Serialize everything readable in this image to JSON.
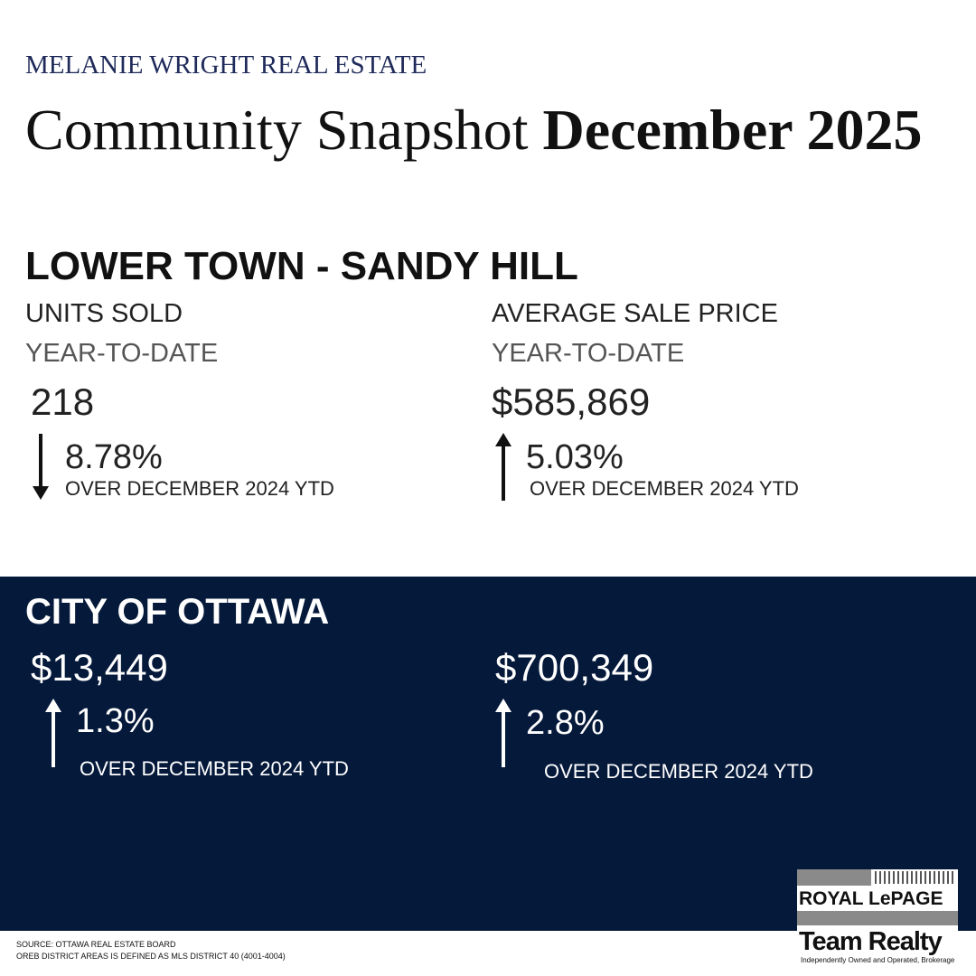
{
  "header": {
    "brand": "MELANIE WRIGHT REAL ESTATE",
    "title": "Community Snapshot",
    "date": "December 2025"
  },
  "neighbourhood": {
    "name": "LOWER TOWN - SANDY HILL",
    "stats": [
      {
        "label": "UNITS SOLD",
        "period": "YEAR-TO-DATE",
        "value": "218",
        "change": "8.78%",
        "note": "OVER DECEMBER 2024 YTD"
      },
      {
        "label": "AVERAGE SALE PRICE",
        "period": "YEAR-TO-DATE",
        "value": "$585,869",
        "change": "5.03%",
        "note": "OVER DECEMBER 2024 YTD"
      }
    ]
  },
  "city": {
    "name": "CITY OF OTTAWA",
    "stats": [
      {
        "value": "$13,449",
        "change": "1.3%",
        "note": "OVER DECEMBER 2024 YTD"
      },
      {
        "value": "$700,349",
        "change": "2.8%",
        "note": "OVER DECEMBER 2024 YTD"
      }
    ]
  },
  "footer": {
    "source": "SOURCE: OTTAWA REAL ESTATE BOARD",
    "note": "OREB DISTRICT AREAS IS DEFINED AS MLS DISTRICT 40 (4001-4004)"
  },
  "logo": {
    "brand": "ROYAL LePAGE",
    "office": "Team Realty",
    "tagline": "Independently Owned and Operated, Brokerage"
  }
}
